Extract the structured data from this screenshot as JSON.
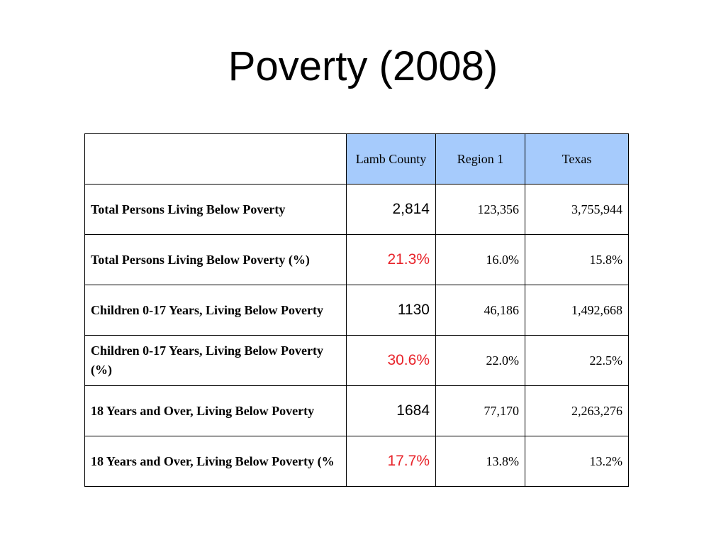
{
  "title": "Poverty (2008)",
  "table": {
    "headers": [
      "",
      "Lamb County",
      "Region 1",
      "Texas"
    ],
    "rows": [
      {
        "label": "Total Persons Living Below Poverty",
        "lamb": "2,814",
        "region": "123,356",
        "texas": "3,755,944"
      },
      {
        "label": "Total Persons Living Below Poverty (%)",
        "lamb": "21.3%",
        "region": "16.0%",
        "texas": "15.8%"
      },
      {
        "label": "Children 0-17 Years, Living Below Poverty",
        "lamb": "1130",
        "region": "46,186",
        "texas": "1,492,668"
      },
      {
        "label": "Children 0-17 Years, Living Below Poverty (%)",
        "lamb": "30.6%",
        "region": "22.0%",
        "texas": "22.5%"
      },
      {
        "label": "18 Years and Over, Living Below Poverty",
        "lamb": "1684",
        "region": "77,170",
        "texas": "2,263,276"
      },
      {
        "label": "18 Years and Over, Living Below Poverty (%",
        "lamb": "17.7%",
        "region": "13.8%",
        "texas": "13.2%"
      }
    ]
  },
  "colors": {
    "header_bg": "#a6cbfc",
    "percent_text": "#e8232a"
  }
}
